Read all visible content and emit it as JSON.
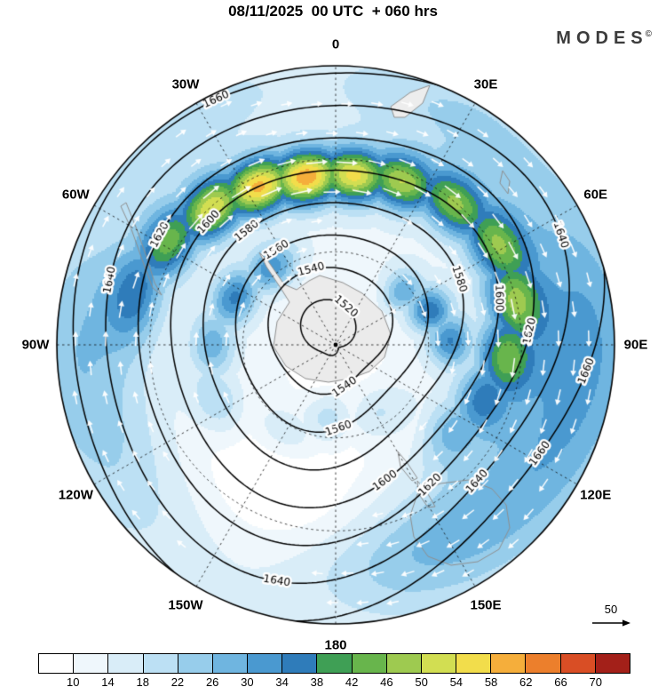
{
  "header": {
    "title": "08/11/2025  00 UTC  + 060 hrs",
    "brand": "MODES",
    "brand_sup": "©"
  },
  "map": {
    "lon_labels": [
      {
        "text": "0",
        "angle": 0
      },
      {
        "text": "30E",
        "angle": 30
      },
      {
        "text": "60E",
        "angle": 60
      },
      {
        "text": "90E",
        "angle": 90
      },
      {
        "text": "120E",
        "angle": 120
      },
      {
        "text": "150E",
        "angle": 150
      },
      {
        "text": "180",
        "angle": 180
      },
      {
        "text": "150W",
        "angle": 210
      },
      {
        "text": "120W",
        "angle": 240
      },
      {
        "text": "90W",
        "angle": 270
      },
      {
        "text": "60W",
        "angle": 300
      },
      {
        "text": "30W",
        "angle": 330
      }
    ]
  },
  "wind_reference": {
    "label": "50"
  },
  "chart_data": {
    "type": "heatmap",
    "title": "08/11/2025 00 UTC + 060 hrs",
    "projection": "south polar stereographic",
    "shaded_variable": "wind speed",
    "shade_levels": [
      10,
      14,
      18,
      22,
      26,
      30,
      34,
      38,
      42,
      46,
      50,
      54,
      58,
      62,
      66,
      70
    ],
    "shade_colors": [
      "#ffffff",
      "#eff7fc",
      "#d9edf8",
      "#bce0f4",
      "#97cdeb",
      "#6fb5e0",
      "#4a99d0",
      "#2f7cba",
      "#3f9f55",
      "#68b54c",
      "#9eca50",
      "#d2de52",
      "#f2dd4b",
      "#f5ae3b",
      "#ec7f2c",
      "#d94e25",
      "#a32019"
    ],
    "contour_variable": "geopotential height",
    "contour_levels": [
      1520,
      1540,
      1560,
      1580,
      1600,
      1620,
      1640,
      1660
    ],
    "contour_interval": 20,
    "wind_vector_reference": 50,
    "longitude_labels": [
      "0",
      "30E",
      "60E",
      "90E",
      "120E",
      "150E",
      "180",
      "150W",
      "120W",
      "90W",
      "60W",
      "30W"
    ],
    "colorbar_position": "bottom"
  }
}
